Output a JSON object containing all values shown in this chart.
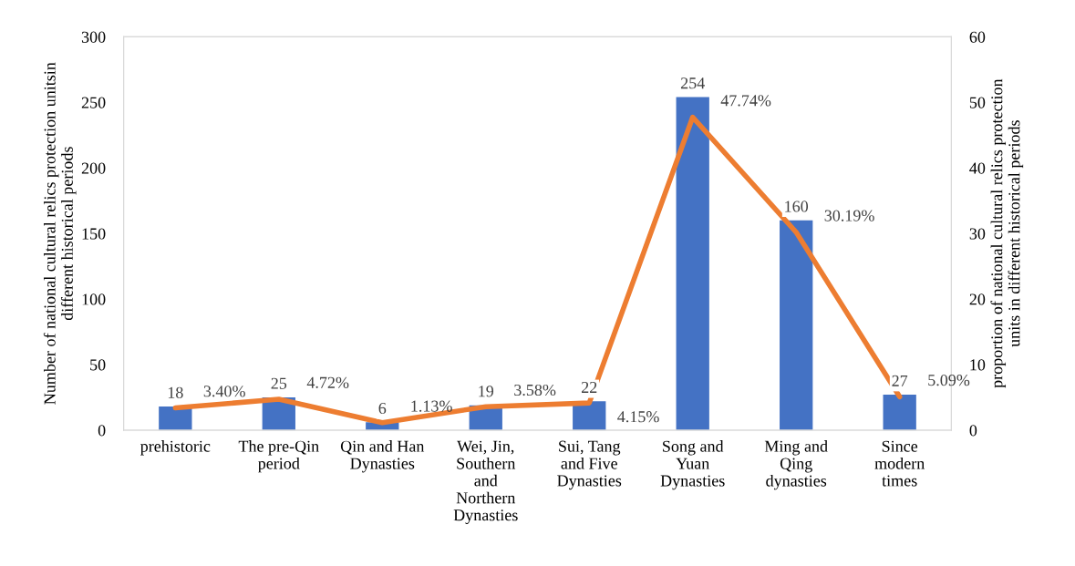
{
  "chart_data": {
    "type": "bar",
    "categories": [
      "prehistoric",
      "The pre-Qin\nperiod",
      "Qin and Han\nDynasties",
      "Wei, Jin,\nSouthern\nand\nNorthern\nDynasties",
      "Sui, Tang\nand Five\nDynasties",
      "Song and\nYuan\nDynasties",
      "Ming and\nQing\ndynasties",
      "Since\nmodern\ntimes"
    ],
    "series": [
      {
        "axis": "y",
        "color": "#4472c4",
        "values": [
          18,
          25,
          6,
          19,
          22,
          254,
          160,
          27
        ],
        "value_labels": [
          "18",
          "25",
          "6",
          "19",
          "22",
          "254",
          "160",
          "27"
        ]
      },
      {
        "type": "line",
        "axis": "y2",
        "color": "#ed7d31",
        "values": [
          3.4,
          4.72,
          1.13,
          3.58,
          4.15,
          47.74,
          30.19,
          5.09
        ],
        "value_labels": [
          "3.40%",
          "4.72%",
          "1.13%",
          "3.58%",
          "4.15%",
          "47.74%",
          "30.19%",
          "5.09%"
        ]
      }
    ],
    "ylabel": "Number of national cultural relics protection unitsin\ndifferent historical periods",
    "y2label": "proportion of national cultural relics protection\nunits in different historical periods",
    "ylim": [
      0,
      300
    ],
    "yticks": [
      0,
      50,
      100,
      150,
      200,
      250,
      300
    ],
    "y2lim": [
      0,
      60
    ],
    "y2ticks": [
      0,
      10,
      20,
      30,
      40,
      50,
      60
    ]
  }
}
